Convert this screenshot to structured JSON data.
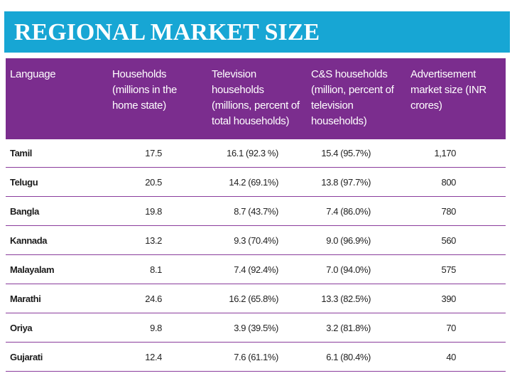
{
  "slide": {
    "title": "REGIONAL MARKET SIZE"
  },
  "table": {
    "headers": [
      "Language",
      "Households (millions in the home state)",
      "Television households (millions,  percent of total households)",
      "C&S households (million,  percent of television households)",
      "Advertisement market size (INR crores)"
    ],
    "rows": [
      [
        "Tamil",
        "17.5",
        "16.1 (92.3 %)",
        "15.4 (95.7%)",
        "1,170"
      ],
      [
        "Telugu",
        "20.5",
        "14.2 (69.1%)",
        "13.8 (97.7%)",
        "800"
      ],
      [
        "Bangla",
        "19.8",
        "8.7 (43.7%)",
        "7.4 (86.0%)",
        "780"
      ],
      [
        "Kannada",
        "13.2",
        "9.3 (70.4%)",
        "9.0 (96.9%)",
        "560"
      ],
      [
        "Malayalam",
        "8.1",
        "7.4 (92.4%)",
        "7.0 (94.0%)",
        "575"
      ],
      [
        "Marathi",
        "24.6",
        "16.2 (65.8%)",
        "13.3 (82.5%)",
        "390"
      ],
      [
        "Oriya",
        "9.8",
        "3.9 (39.5%)",
        "3.2 (81.8%)",
        "70"
      ],
      [
        "Gujarati",
        "12.4",
        "7.6 (61.1%)",
        "6.1 (80.4%)",
        "40"
      ]
    ]
  },
  "colors": {
    "title_bar": "#17a6d4",
    "header_bg": "#7b2d8e",
    "row_divider": "#8a3c9c"
  }
}
